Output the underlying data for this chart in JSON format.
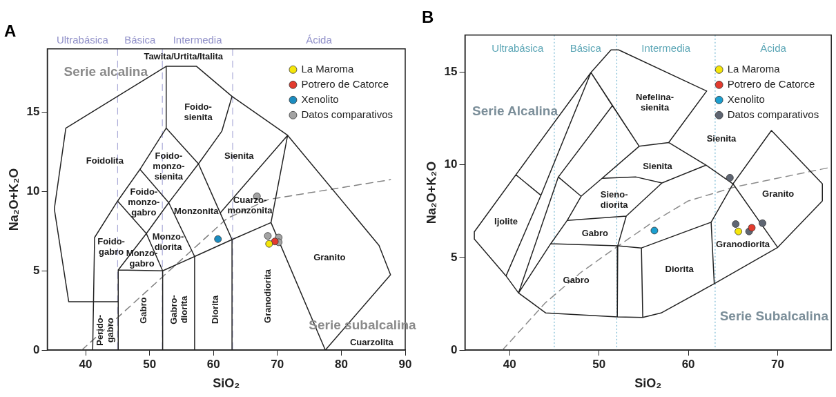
{
  "chart_data": [
    {
      "type": "scatter",
      "title": "A",
      "xlabel": "SiO₂",
      "ylabel": "Na₂O+K₂O",
      "xlim": [
        34,
        90
      ],
      "ylim": [
        0,
        19
      ],
      "xticks": [
        40,
        50,
        60,
        70,
        80,
        90
      ],
      "yticks": [
        0,
        5,
        10,
        15
      ],
      "grid": false,
      "legend": "top right",
      "series": [
        {
          "type": "line",
          "color": "#222222",
          "marker": "none",
          "line_style": "solid",
          "x": [
            37.35,
            35.1,
            36.9,
            52.6,
            57.35,
            62.9,
            71.6,
            85.9,
            87.7,
            77.5,
            null,
            37.35,
            45,
            null,
            41.1,
            41.4,
            45,
            48.5,
            52.6,
            52.6,
            null,
            45.1,
            45.1,
            52.05,
            57.05,
            62.9,
            69.0,
            71.6,
            null,
            69.0,
            77.5,
            null,
            52.05,
            52.05,
            null,
            57.05,
            57.05,
            null,
            62.9,
            62.9,
            null,
            45.1,
            49.5,
            53.0,
            57.65,
            61.3,
            62.9,
            null,
            45,
            49.5,
            52.05,
            null,
            48.5,
            53.0,
            57.05,
            null,
            52.6,
            57.65,
            61.05,
            62.9,
            null,
            61.05,
            71.6
          ],
          "values": [
            3.05,
            8.9,
            14.0,
            17.9,
            17.9,
            16.0,
            13.55,
            6.6,
            4.75,
            0,
            null,
            3.05,
            3.05,
            null,
            0,
            7.1,
            9.4,
            11.4,
            14.0,
            17.9,
            null,
            0,
            5.05,
            5.0,
            5.9,
            6.97,
            8.04,
            13.55,
            null,
            8.04,
            0,
            null,
            0,
            5.0,
            null,
            0,
            5.9,
            null,
            0,
            6.97,
            null,
            5.05,
            7.35,
            9.3,
            11.75,
            13.8,
            16.0,
            null,
            9.4,
            7.35,
            5.0,
            null,
            11.4,
            9.3,
            5.9,
            null,
            14.0,
            11.75,
            8.65,
            6.97,
            null,
            8.65,
            13.55
          ]
        },
        {
          "type": "line",
          "color": "#808080",
          "marker": "none",
          "line_style": "dashed",
          "x": [
            39.4,
            62.1,
            68.6,
            87.7
          ],
          "values": [
            0,
            8.3,
            9.5,
            10.75
          ]
        },
        {
          "name": "La Maroma",
          "color": "#f5e60a",
          "x": [
            68.7
          ],
          "values": [
            6.7
          ]
        },
        {
          "name": "Potrero de Catorce",
          "color": "#e33b2e",
          "x": [
            69.6
          ],
          "values": [
            6.85
          ]
        },
        {
          "name": "Xenolito",
          "color": "#1b8cc0",
          "x": [
            60.7
          ],
          "values": [
            7.0
          ]
        },
        {
          "name": "Datos comparativos",
          "color": "#a3a3a3",
          "x": [
            66.8,
            68.5,
            70.2,
            70.2
          ],
          "values": [
            9.7,
            7.2,
            7.1,
            6.8
          ]
        }
      ],
      "ref_lines": [
        {
          "axis": "x",
          "value": 45,
          "color": "#9a9ad0",
          "line_style": "dashed"
        },
        {
          "axis": "x",
          "value": 52,
          "color": "#9a9ad0",
          "line_style": "dashed"
        },
        {
          "axis": "x",
          "value": 63,
          "color": "#9a9ad0",
          "line_style": "dashed"
        }
      ],
      "annotations": [
        "Ultrabásica",
        "Básica",
        "Intermedia",
        "Ácida",
        "Tawita/Urtita/Italita",
        "Serie alcalina",
        "Foido-\nsienita",
        "Foidolita",
        "Foido-\nmonzo-\nsienita",
        "Sienita",
        "Foido-\nmonzo-\ngabro",
        "Monzonita",
        "Cuarzo-\nmonzonita",
        "Foido-\ngabro",
        "Monzo-\ndiorita",
        "Monzo-\ngabro",
        "Granito",
        "Perido-\ngabro",
        "Gabro",
        "Gabro-\ndiorita",
        "Diorita",
        "Granodiorita",
        "Serie subalcalina",
        "Cuarzolita"
      ]
    },
    {
      "type": "scatter",
      "title": "B",
      "xlabel": "SiO₂",
      "ylabel": "Na₂O+K₂O",
      "xlim": [
        35,
        76
      ],
      "ylim": [
        0,
        17
      ],
      "xticks": [
        40,
        50,
        60,
        70
      ],
      "yticks": [
        0,
        5,
        10,
        15
      ],
      "grid": false,
      "legend": "top right",
      "series": [
        {
          "type": "line",
          "color": "#222222",
          "marker": "none",
          "line_style": "solid",
          "x": [
            36.05,
            40.7,
            49.1,
            51.35,
            52.2,
            62.05,
            null,
            62.05,
            57.8,
            54.5,
            49.1,
            null,
            57.8,
            61.98,
            65.0,
            62.55,
            62.9,
            null,
            65.0,
            70.0,
            null,
            65.0,
            69.3,
            75.0,
            75.0,
            70.0,
            62.9,
            56.95,
            54.9,
            52.05,
            44.05,
            41.0,
            39.6,
            36.05,
            36.05,
            null,
            61.98,
            57.05,
            53.05,
            52.1,
            52.05,
            null,
            46.45,
            53.05,
            null,
            46.45,
            48.0,
            50.35,
            54.15,
            57.05,
            null,
            50.35,
            54.5,
            null,
            41.0,
            44.6,
            46.45,
            null,
            44.6,
            52.1,
            54.75,
            62.55,
            null,
            54.75,
            54.9,
            null,
            40.7,
            43.5,
            39.6,
            null,
            43.5,
            49.1,
            null,
            41.0,
            45.45,
            51.5,
            54.5,
            null,
            45.45,
            48.0,
            null,
            49.1,
            51.5
          ],
          "values": [
            6.38,
            9.46,
            14.98,
            16.2,
            16.2,
            13.98,
            null,
            13.98,
            11.2,
            11.0,
            14.98,
            null,
            11.2,
            9.98,
            8.97,
            6.9,
            3.58,
            null,
            8.97,
            5.54,
            null,
            8.97,
            11.85,
            8.97,
            8.05,
            5.54,
            3.58,
            2.0,
            1.76,
            1.79,
            2.0,
            3.08,
            4.0,
            5.99,
            6.38,
            null,
            9.98,
            9.02,
            7.23,
            5.63,
            1.79,
            null,
            7.0,
            7.23,
            null,
            7.0,
            8.3,
            9.27,
            9.34,
            9.02,
            null,
            9.27,
            11.0,
            null,
            3.08,
            5.74,
            7.0,
            null,
            5.74,
            5.63,
            5.51,
            6.9,
            null,
            5.51,
            1.76,
            null,
            9.46,
            8.35,
            4.0,
            null,
            8.35,
            14.98,
            null,
            3.08,
            9.34,
            13.19,
            11.0,
            null,
            9.34,
            8.3,
            null,
            14.98,
            13.19
          ]
        },
        {
          "type": "line",
          "color": "#8c8c8c",
          "marker": "none",
          "line_style": "dashed",
          "x": [
            39.2,
            44.0,
            48.0,
            52.1,
            56.0,
            60.0,
            65.2,
            76.0
          ],
          "values": [
            0,
            2.55,
            4.2,
            5.6,
            6.9,
            8.05,
            8.8,
            9.87
          ]
        },
        {
          "name": "La Maroma",
          "color": "#f5e60a",
          "x": [
            65.6
          ],
          "values": [
            6.4
          ]
        },
        {
          "name": "Potrero de Catorce",
          "color": "#e33b2e",
          "x": [
            67.1
          ],
          "values": [
            6.6
          ]
        },
        {
          "name": "Xenolito",
          "color": "#1b9fd0",
          "x": [
            56.2
          ],
          "values": [
            6.45
          ]
        },
        {
          "name": "Datos comparativos",
          "color": "#5f6673",
          "x": [
            64.65,
            65.3,
            66.8,
            68.3
          ],
          "values": [
            9.3,
            6.8,
            6.4,
            6.85
          ]
        }
      ],
      "ref_lines": [
        {
          "axis": "x",
          "value": 45,
          "color": "#5aa8c8",
          "line_style": "dotted"
        },
        {
          "axis": "x",
          "value": 52,
          "color": "#5aa8c8",
          "line_style": "dotted"
        },
        {
          "axis": "x",
          "value": 63,
          "color": "#5aa8c8",
          "line_style": "dotted"
        }
      ],
      "annotations": [
        "Ultrabásica",
        "Básica",
        "Intermedia",
        "Ácida",
        "Serie Alcalina",
        "Nefelina-\nsienita",
        "Sienita",
        "Sienita",
        "Granito",
        "Sieno-\ndiorita",
        "Ijolite",
        "Gabro",
        "Granodiorita",
        "Diorita",
        "Gabro",
        "Serie Subalcalina"
      ]
    }
  ]
}
